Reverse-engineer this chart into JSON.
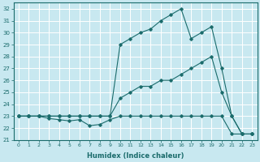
{
  "xlabel": "Humidex (Indice chaleur)",
  "ylabel": "",
  "bg_color": "#c8e8f0",
  "line_color": "#1a6b6b",
  "grid_color": "#ffffff",
  "x": [
    0,
    1,
    2,
    3,
    4,
    5,
    6,
    7,
    8,
    9,
    10,
    11,
    12,
    13,
    14,
    15,
    16,
    17,
    18,
    19,
    20,
    21,
    22,
    23
  ],
  "y_top": [
    23,
    23,
    23,
    23,
    23,
    23,
    23,
    23,
    23,
    23,
    29,
    29.5,
    30,
    30.3,
    31,
    31.5,
    32,
    29.5,
    30,
    30.5,
    27,
    23,
    21.5,
    21.5
  ],
  "y_mid": [
    23,
    23,
    23,
    23,
    23,
    23,
    23,
    23,
    23,
    23,
    24.5,
    25,
    25.5,
    25.5,
    26,
    26,
    26.5,
    27,
    27.5,
    28,
    25,
    23,
    21.5,
    21.5
  ],
  "y_bot": [
    23,
    23,
    23,
    22.8,
    22.7,
    22.6,
    22.7,
    22.2,
    22.3,
    22.7,
    23,
    23,
    23,
    23,
    23,
    23,
    23,
    23,
    23,
    23,
    23,
    21.5,
    21.5,
    21.5
  ],
  "ylim": [
    21,
    32.5
  ],
  "yticks": [
    21,
    22,
    23,
    24,
    25,
    26,
    27,
    28,
    29,
    30,
    31,
    32
  ],
  "xticks": [
    0,
    1,
    2,
    3,
    4,
    5,
    6,
    7,
    8,
    9,
    10,
    11,
    12,
    13,
    14,
    15,
    16,
    17,
    18,
    19,
    20,
    21,
    22,
    23
  ]
}
